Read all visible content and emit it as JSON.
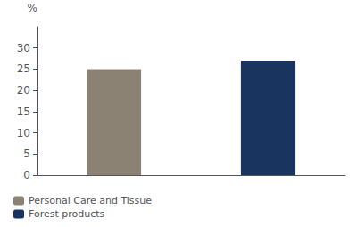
{
  "chart_data": {
    "type": "bar",
    "ylabel": "%",
    "categories": [
      "Personal Care and Tissue",
      "Forest products"
    ],
    "values": [
      25,
      27
    ],
    "colors": [
      "#8c8274",
      "#1a3460"
    ],
    "ylim": [
      0,
      35
    ],
    "yticks": [
      0,
      5,
      10,
      15,
      20,
      25,
      30
    ],
    "grid": false,
    "legend": "bottom",
    "tick_labels": "y"
  }
}
